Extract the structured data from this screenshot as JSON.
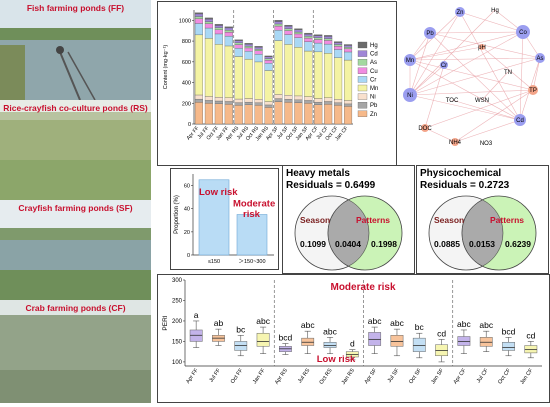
{
  "photos": [
    {
      "label": "Fish farming ponds (FF)"
    },
    {
      "label": "Rice-crayfish co-culture ponds (RS)"
    },
    {
      "label": "Crayfish farming ponds (SF)"
    },
    {
      "label": "Crab farming ponds (CF)"
    }
  ],
  "stacked": {
    "ylabel": "Content (mg·kg⁻¹)",
    "yticks": [
      "0",
      "200",
      "400",
      "600",
      "800",
      "1000"
    ],
    "categories": [
      "Apr FF",
      "Jul FF",
      "Oct FF",
      "Jan FF",
      "Apr RS",
      "Jul RS",
      "Oct RS",
      "Jan RS",
      "Apr SF",
      "Jul SF",
      "Oct SF",
      "Jan SF",
      "Apr CF",
      "Jul CF",
      "Oct CF",
      "Jan CF"
    ],
    "legend": [
      "Hg",
      "Cd",
      "As",
      "Cu",
      "Cr",
      "Mn",
      "Ni",
      "Pb",
      "Zn"
    ],
    "colors": {
      "Zn": "#f6b98a",
      "Pb": "#a6a6a6",
      "Ni": "#f8e0cd",
      "Mn": "#f4f3a3",
      "Cr": "#a9d8f5",
      "Cu": "#f08ce0",
      "As": "#a3d9a0",
      "Cd": "#9f86d6",
      "Hg": "#6b6b6b"
    }
  },
  "network": {
    "nodes": [
      "Hg",
      "Zn",
      "Co",
      "Pb",
      "Mn",
      "Cr",
      "pH",
      "As",
      "TN",
      "TP",
      "Ni",
      "TOC",
      "WSN",
      "DOC",
      "NH4",
      "NO3",
      "Cd"
    ]
  },
  "risk_bar": {
    "ylabel": "Proportion (%)",
    "yticks": [
      "0",
      "20",
      "40",
      "60"
    ],
    "categories": [
      "≤150",
      "＞150~300"
    ],
    "ann_low": "Low risk",
    "ann_moderate_1": "Moderate",
    "ann_moderate_2": "risk"
  },
  "venn_heavy": {
    "title": "Heavy metals",
    "residuals": "Residuals = 0.6499",
    "left_label": "Season",
    "right_label": "Patterns",
    "left_value": "0.1099",
    "overlap_value": "0.0404",
    "right_value": "0.1998"
  },
  "venn_phys": {
    "title": "Physicochemical",
    "residuals": "Residuals = 0.2723",
    "left_label": "Season",
    "right_label": "Patterns",
    "left_value": "0.0885",
    "overlap_value": "0.0153",
    "right_value": "0.6239"
  },
  "peri": {
    "ylabel": "PERI",
    "yticks": [
      "100",
      "150",
      "200",
      "250",
      "300"
    ],
    "ann_moderate": "Moderate risk",
    "ann_low": "Low risk",
    "categories": [
      "Apr FF",
      "Jul FF",
      "Oct FF",
      "Jan FF",
      "Apr RS",
      "Jul RS",
      "Oct RS",
      "Jan RS",
      "Apr SF",
      "Jul SF",
      "Oct SF",
      "Jan SF",
      "Apr CF",
      "Jul CF",
      "Oct CF",
      "Jan CF"
    ],
    "letters": [
      "a",
      "ab",
      "bc",
      "abc",
      "bcd",
      "abc",
      "abc",
      "d",
      "abc",
      "abc",
      "bc",
      "cd",
      "abc",
      "abc",
      "bcd",
      "cd"
    ],
    "box_colors": [
      "#b9a6e6",
      "#f6b98a",
      "#b9d9f2",
      "#f4f3a3"
    ]
  },
  "chart_data": [
    {
      "type": "bar",
      "stacked": true,
      "categories": [
        "Apr FF",
        "Jul FF",
        "Oct FF",
        "Jan FF",
        "Apr RS",
        "Jul RS",
        "Oct RS",
        "Jan RS",
        "Apr SF",
        "Jul SF",
        "Oct SF",
        "Jan SF",
        "Apr CF",
        "Jul CF",
        "Oct CF",
        "Jan CF"
      ],
      "ylabel": "Content (mg·kg⁻¹)",
      "ylim": [
        0,
        1100
      ],
      "series": [
        {
          "name": "Zn",
          "values": [
            210,
            200,
            195,
            190,
            180,
            185,
            180,
            160,
            215,
            210,
            205,
            200,
            185,
            190,
            180,
            170
          ]
        },
        {
          "name": "Pb",
          "values": [
            30,
            28,
            27,
            27,
            26,
            26,
            25,
            24,
            30,
            29,
            28,
            27,
            26,
            27,
            25,
            24
          ]
        },
        {
          "name": "Ni",
          "values": [
            40,
            38,
            37,
            36,
            35,
            35,
            34,
            32,
            40,
            39,
            38,
            37,
            35,
            36,
            34,
            33
          ]
        },
        {
          "name": "Mn",
          "values": [
            580,
            560,
            510,
            500,
            410,
            380,
            360,
            300,
            520,
            490,
            470,
            440,
            450,
            430,
            400,
            390
          ]
        },
        {
          "name": "Cr",
          "values": [
            110,
            100,
            100,
            95,
            80,
            75,
            75,
            70,
            100,
            95,
            92,
            90,
            85,
            88,
            80,
            78
          ]
        },
        {
          "name": "Cu",
          "values": [
            45,
            42,
            40,
            38,
            35,
            33,
            32,
            30,
            40,
            38,
            36,
            35,
            34,
            35,
            32,
            30
          ]
        },
        {
          "name": "As",
          "values": [
            22,
            20,
            20,
            19,
            17,
            16,
            16,
            15,
            20,
            19,
            18,
            17,
            17,
            18,
            16,
            15
          ]
        },
        {
          "name": "Cd",
          "values": [
            25,
            24,
            22,
            22,
            20,
            19,
            18,
            17,
            24,
            23,
            22,
            21,
            20,
            21,
            19,
            18
          ]
        },
        {
          "name": "Hg",
          "values": [
            12,
            12,
            11,
            11,
            10,
            10,
            10,
            9,
            12,
            11,
            11,
            10,
            10,
            10,
            9,
            9
          ]
        }
      ]
    },
    {
      "type": "bar",
      "categories": [
        "≤150",
        "＞150~300"
      ],
      "ylabel": "Proportion (%)",
      "ylim": [
        0,
        70
      ],
      "values": [
        65,
        35
      ]
    },
    {
      "type": "box",
      "categories": [
        "Apr FF",
        "Jul FF",
        "Oct FF",
        "Jan FF",
        "Apr RS",
        "Jul RS",
        "Oct RS",
        "Jan RS",
        "Apr SF",
        "Jul SF",
        "Oct SF",
        "Jan SF",
        "Apr CF",
        "Jul CF",
        "Oct CF",
        "Jan CF"
      ],
      "ylabel": "PERI",
      "ylim": [
        90,
        300
      ],
      "boxes": [
        {
          "min": 135,
          "q1": 150,
          "median": 165,
          "q3": 178,
          "max": 200
        },
        {
          "min": 140,
          "q1": 150,
          "median": 158,
          "q3": 165,
          "max": 180
        },
        {
          "min": 115,
          "q1": 128,
          "median": 140,
          "q3": 150,
          "max": 165
        },
        {
          "min": 120,
          "q1": 138,
          "median": 150,
          "q3": 170,
          "max": 185
        },
        {
          "min": 118,
          "q1": 125,
          "median": 132,
          "q3": 138,
          "max": 145
        },
        {
          "min": 120,
          "q1": 140,
          "median": 148,
          "q3": 158,
          "max": 175
        },
        {
          "min": 120,
          "q1": 135,
          "median": 140,
          "q3": 148,
          "max": 160
        },
        {
          "min": 105,
          "q1": 112,
          "median": 118,
          "q3": 125,
          "max": 130
        },
        {
          "min": 120,
          "q1": 140,
          "median": 155,
          "q3": 172,
          "max": 185
        },
        {
          "min": 115,
          "q1": 138,
          "median": 150,
          "q3": 165,
          "max": 180
        },
        {
          "min": 110,
          "q1": 125,
          "median": 140,
          "q3": 158,
          "max": 170
        },
        {
          "min": 100,
          "q1": 115,
          "median": 128,
          "q3": 142,
          "max": 155
        },
        {
          "min": 120,
          "q1": 140,
          "median": 150,
          "q3": 162,
          "max": 178
        },
        {
          "min": 125,
          "q1": 138,
          "median": 148,
          "q3": 160,
          "max": 175
        },
        {
          "min": 115,
          "q1": 128,
          "median": 135,
          "q3": 148,
          "max": 160
        },
        {
          "min": 110,
          "q1": 122,
          "median": 130,
          "q3": 140,
          "max": 150
        }
      ]
    }
  ]
}
